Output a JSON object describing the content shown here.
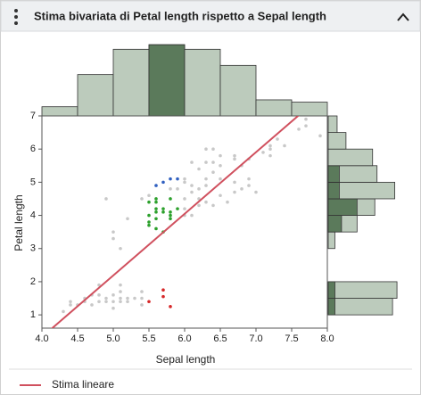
{
  "chart_data": {
    "type": "scatter",
    "title": "Stima bivariata di Petal length rispetto a Sepal length",
    "x_label": "Sepal length",
    "y_label": "Petal length",
    "xlim": [
      4,
      8
    ],
    "ylim": [
      0.6,
      7
    ],
    "xticks": [
      {
        "value": 4,
        "label": "4.0"
      },
      4.5,
      {
        "value": 5,
        "label": "5.0"
      },
      5.5,
      {
        "value": 6,
        "label": "6.0"
      },
      6.5,
      {
        "value": 7,
        "label": "7.0"
      },
      7.5,
      {
        "value": 8,
        "label": "8.0"
      }
    ],
    "yticks": [
      1,
      2,
      3,
      4,
      5,
      6,
      7
    ],
    "series": [
      {
        "color": "#c8c8c8",
        "x": [
          4.3,
          4.4,
          4.4,
          4.5,
          4.6,
          4.6,
          4.7,
          4.7,
          4.8,
          4.8,
          4.8,
          4.9,
          4.9,
          5.0,
          5.0,
          5.0,
          5.1,
          5.1,
          5.1,
          5.1,
          5.2,
          5.2,
          5.3,
          5.4,
          5.4,
          5.4,
          4.9,
          5.0,
          5.0,
          5.1,
          5.2,
          5.4,
          5.5,
          6.0,
          6.0,
          6.1,
          6.1,
          6.2,
          6.2,
          6.3,
          6.3,
          6.3,
          6.3,
          6.4,
          6.4,
          6.5,
          6.5,
          6.6,
          6.7,
          6.7,
          6.7,
          6.8,
          6.8,
          6.9,
          6.9,
          7.0,
          7.1,
          7.2,
          7.2,
          7.3,
          7.4,
          7.6,
          7.7,
          7.7,
          7.9,
          6.0,
          6.1,
          6.2,
          5.9,
          6.0,
          6.1,
          6.4,
          6.5,
          6.3,
          6.7,
          6.9,
          7.2,
          6.5,
          6.4,
          5.8,
          6.0,
          6.2
        ],
        "y": [
          1.1,
          1.3,
          1.4,
          1.3,
          1.4,
          1.5,
          1.3,
          1.6,
          1.4,
          1.6,
          1.9,
          1.4,
          1.5,
          1.2,
          1.4,
          1.6,
          1.4,
          1.5,
          1.7,
          1.9,
          1.4,
          1.5,
          1.5,
          1.3,
          1.5,
          1.7,
          4.5,
          3.3,
          3.5,
          3.0,
          3.9,
          4.5,
          4.6,
          4.5,
          5.0,
          4.7,
          5.6,
          4.8,
          5.4,
          4.4,
          4.9,
          5.6,
          6.0,
          4.3,
          5.3,
          4.6,
          5.5,
          4.4,
          4.7,
          5.7,
          5.8,
          4.8,
          5.5,
          4.9,
          5.7,
          4.7,
          5.9,
          6.0,
          6.1,
          6.3,
          6.1,
          6.6,
          6.7,
          6.9,
          6.4,
          4.0,
          4.0,
          4.3,
          4.8,
          5.1,
          4.9,
          5.6,
          5.1,
          5.1,
          5.0,
          5.1,
          5.8,
          5.8,
          6.0,
          4.8,
          4.2,
          4.5
        ]
      },
      {
        "color": "#2ca02c",
        "x": [
          5.5,
          5.5,
          5.5,
          5.6,
          5.6,
          5.6,
          5.6,
          5.6,
          5.7,
          5.7,
          5.7,
          5.8,
          5.8,
          5.8,
          5.8,
          5.9,
          5.5,
          5.6
        ],
        "y": [
          3.7,
          4.0,
          4.4,
          3.6,
          3.9,
          4.1,
          4.2,
          4.5,
          3.5,
          4.1,
          4.2,
          3.9,
          4.0,
          4.1,
          4.5,
          4.2,
          3.8,
          4.4
        ]
      },
      {
        "color": "#3060c0",
        "x": [
          5.6,
          5.7,
          5.8,
          5.9
        ],
        "y": [
          4.9,
          5.0,
          5.1,
          5.1
        ]
      },
      {
        "color": "#d62728",
        "x": [
          5.5,
          5.7,
          5.7,
          5.8
        ],
        "y": [
          1.4,
          1.75,
          1.55,
          1.25
        ]
      }
    ],
    "fit": {
      "label": "Stima lineare",
      "color": "#d0505e",
      "slope": 1.858,
      "intercept": -7.101
    },
    "top_histogram": {
      "bins": [
        4,
        4.5,
        5,
        5.5,
        6,
        6.5,
        7,
        7.5,
        8
      ],
      "counts": [
        4,
        18,
        29,
        31,
        29,
        22,
        7,
        6
      ],
      "selected": [
        0,
        0,
        0,
        31,
        0,
        0,
        0,
        0
      ],
      "ylim": [
        0,
        33
      ],
      "color": "#bccbbc",
      "selected_color": "#5b7a5b"
    },
    "right_histogram": {
      "bins": [
        1,
        1.5,
        2,
        2.5,
        3,
        3.5,
        4,
        4.5,
        5,
        5.5,
        6,
        6.5,
        7
      ],
      "counts": [
        29,
        31,
        0,
        0,
        3,
        13,
        21,
        30,
        22,
        20,
        8,
        4
      ],
      "selected": [
        3,
        3,
        0,
        0,
        0,
        6,
        13,
        5,
        5,
        0,
        0,
        0
      ],
      "xlim": [
        0,
        37
      ],
      "color": "#bccbbc",
      "selected_color": "#5b7a5b"
    }
  }
}
